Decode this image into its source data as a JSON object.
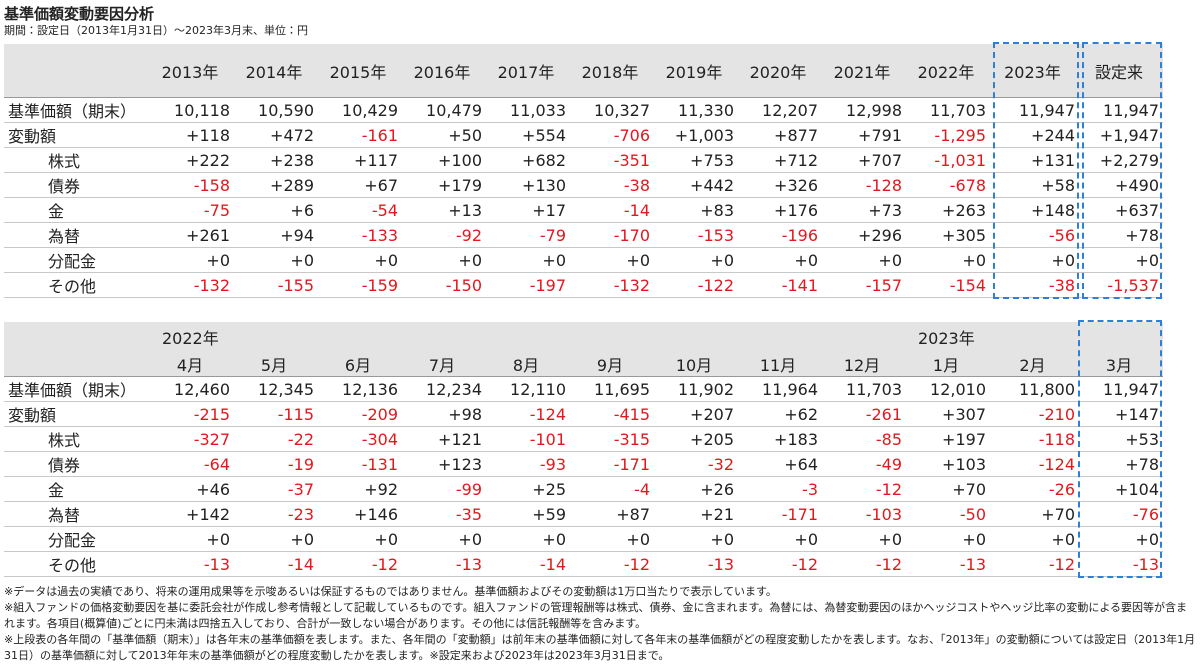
{
  "header": {
    "title": "基準価額変動要因分析",
    "subtitle": "期間：設定日（2013年1月31日）～2023年3月末、単位：円"
  },
  "table1": {
    "columns": [
      "2013年",
      "2014年",
      "2015年",
      "2016年",
      "2017年",
      "2018年",
      "2019年",
      "2020年",
      "2021年",
      "2022年",
      "2023年",
      "設定来"
    ],
    "rows": [
      {
        "label": "基準価額（期末）",
        "values": [
          "10,118",
          "10,590",
          "10,429",
          "10,479",
          "11,033",
          "10,327",
          "11,330",
          "12,207",
          "12,998",
          "11,703",
          "11,947",
          "11,947"
        ]
      },
      {
        "label": "変動額",
        "values": [
          "+118",
          "+472",
          "-161",
          "+50",
          "+554",
          "-706",
          "+1,003",
          "+877",
          "+791",
          "-1,295",
          "+244",
          "+1,947"
        ]
      },
      {
        "label": "株式",
        "values": [
          "+222",
          "+238",
          "+117",
          "+100",
          "+682",
          "-351",
          "+753",
          "+712",
          "+707",
          "-1,031",
          "+131",
          "+2,279"
        ]
      },
      {
        "label": "債券",
        "values": [
          "-158",
          "+289",
          "+67",
          "+179",
          "+130",
          "-38",
          "+442",
          "+326",
          "-128",
          "-678",
          "+58",
          "+490"
        ]
      },
      {
        "label": "金",
        "values": [
          "-75",
          "+6",
          "-54",
          "+13",
          "+17",
          "-14",
          "+83",
          "+176",
          "+73",
          "+263",
          "+148",
          "+637"
        ]
      },
      {
        "label": "為替",
        "values": [
          "+261",
          "+94",
          "-133",
          "-92",
          "-79",
          "-170",
          "-153",
          "-196",
          "+296",
          "+305",
          "-56",
          "+78"
        ]
      },
      {
        "label": "分配金",
        "values": [
          "+0",
          "+0",
          "+0",
          "+0",
          "+0",
          "+0",
          "+0",
          "+0",
          "+0",
          "+0",
          "+0",
          "+0"
        ]
      },
      {
        "label": "その他",
        "values": [
          "-132",
          "-155",
          "-159",
          "-150",
          "-197",
          "-132",
          "-122",
          "-141",
          "-157",
          "-154",
          "-38",
          "-1,537"
        ]
      }
    ]
  },
  "table2": {
    "columns": [
      {
        "year": "2022年",
        "month": "4月"
      },
      {
        "month": "5月"
      },
      {
        "month": "6月"
      },
      {
        "month": "7月"
      },
      {
        "month": "8月"
      },
      {
        "month": "9月"
      },
      {
        "month": "10月"
      },
      {
        "month": "11月"
      },
      {
        "month": "12月"
      },
      {
        "year": "2023年",
        "month": "1月"
      },
      {
        "month": "2月"
      },
      {
        "month": "3月"
      }
    ],
    "rows": [
      {
        "label": "基準価額（期末）",
        "values": [
          "12,460",
          "12,345",
          "12,136",
          "12,234",
          "12,110",
          "11,695",
          "11,902",
          "11,964",
          "11,703",
          "12,010",
          "11,800",
          "11,947"
        ]
      },
      {
        "label": "変動額",
        "values": [
          "-215",
          "-115",
          "-209",
          "+98",
          "-124",
          "-415",
          "+207",
          "+62",
          "-261",
          "+307",
          "-210",
          "+147"
        ]
      },
      {
        "label": "株式",
        "values": [
          "-327",
          "-22",
          "-304",
          "+121",
          "-101",
          "-315",
          "+205",
          "+183",
          "-85",
          "+197",
          "-118",
          "+53"
        ]
      },
      {
        "label": "債券",
        "values": [
          "-64",
          "-19",
          "-131",
          "+123",
          "-93",
          "-171",
          "-32",
          "+64",
          "-49",
          "+103",
          "-124",
          "+78"
        ]
      },
      {
        "label": "金",
        "values": [
          "+46",
          "-37",
          "+92",
          "-99",
          "+25",
          "-4",
          "+26",
          "-3",
          "-12",
          "+70",
          "-26",
          "+104"
        ]
      },
      {
        "label": "為替",
        "values": [
          "+142",
          "-23",
          "+146",
          "-35",
          "+59",
          "+87",
          "+21",
          "-171",
          "-103",
          "-50",
          "+70",
          "-76"
        ]
      },
      {
        "label": "分配金",
        "values": [
          "+0",
          "+0",
          "+0",
          "+0",
          "+0",
          "+0",
          "+0",
          "+0",
          "+0",
          "+0",
          "+0",
          "+0"
        ]
      },
      {
        "label": "その他",
        "values": [
          "-13",
          "-14",
          "-12",
          "-13",
          "-14",
          "-12",
          "-13",
          "-12",
          "-12",
          "-13",
          "-12",
          "-13"
        ]
      }
    ]
  },
  "notes": [
    "※データは過去の実績であり、将来の運用成果等を示唆あるいは保証するものではありません。基準価額およびその変動額は1万口当たりで表示しています。",
    "※組入ファンドの価格変動要因を基に委託会社が作成し参考情報として記載しているものです。組入ファンドの管理報酬等は株式、債券、金に含まれます。為替には、為替変動要因のほかヘッジコストやヘッジ比率の変動による要因等が含まれます。各項目(概算値)ごとに円未満は四捨五入しており、合計が一致しない場合があります。その他には信託報酬等を含みます。",
    "※上段表の各年間の「基準価額（期末）」は各年末の基準価額を表します。また、各年間の「変動額」は前年末の基準価額に対して各年末の基準価額がどの程度変動したかを表します。なお、「2013年」の変動額については設定日（2013年1月31日）の基準価額に対して2013年年末の基準価額がどの程度変動したかを表します。※設定来および2023年は2023年3月31日まで。"
  ]
}
